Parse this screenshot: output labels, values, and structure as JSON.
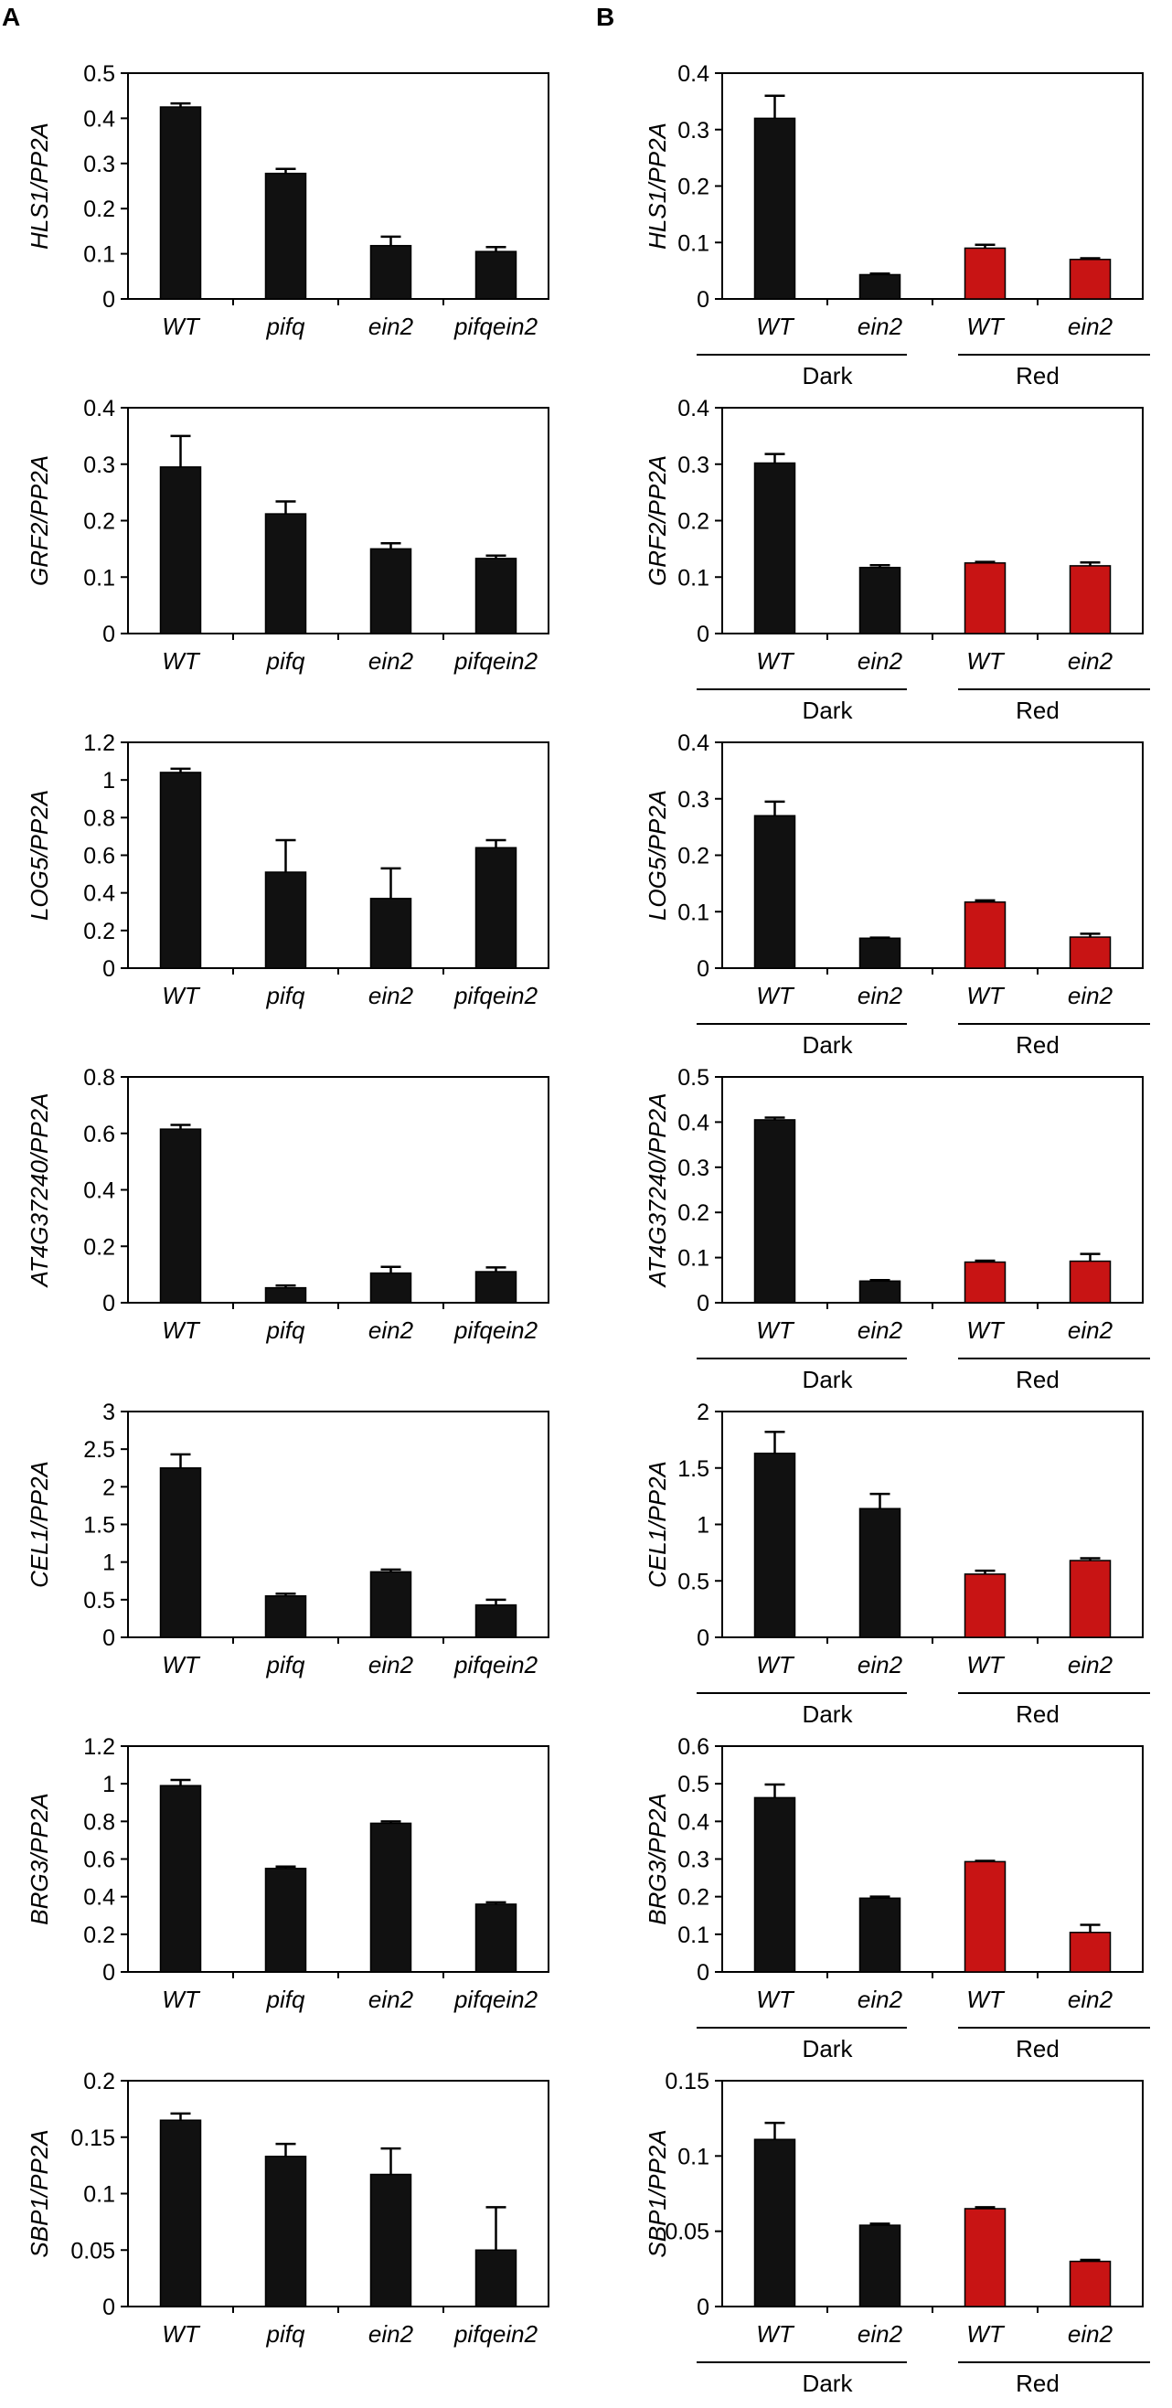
{
  "panel_labels": {
    "A": "A",
    "B": "B"
  },
  "colors": {
    "dark_bar": "#111111",
    "red_bar": "#c81414",
    "axis": "#000000"
  },
  "group_labels": {
    "dark": "Dark",
    "red": "Red"
  },
  "chart_data": [
    {
      "id": "a1",
      "type": "bar",
      "panel": "A",
      "ylabel": "HLS1/PP2A",
      "categories": [
        "WT",
        "pifq",
        "ein2",
        "pifqein2"
      ],
      "values": [
        0.425,
        0.278,
        0.118,
        0.105
      ],
      "errors": [
        0.008,
        0.01,
        0.02,
        0.01
      ],
      "ylim": [
        0,
        0.5
      ],
      "yticks": [
        "0",
        "0.1",
        "0.2",
        "0.3",
        "0.4",
        "0.5"
      ],
      "colors": [
        "dark",
        "dark",
        "dark",
        "dark"
      ]
    },
    {
      "id": "b1",
      "type": "bar",
      "panel": "B",
      "ylabel": "HLS1/PP2A",
      "categories": [
        "WT",
        "ein2",
        "WT",
        "ein2"
      ],
      "values": [
        0.32,
        0.043,
        0.09,
        0.07
      ],
      "errors": [
        0.04,
        0.002,
        0.006,
        0.002
      ],
      "ylim": [
        0,
        0.4
      ],
      "yticks": [
        "0",
        "0.1",
        "0.2",
        "0.3",
        "0.4"
      ],
      "colors": [
        "dark",
        "dark",
        "red",
        "red"
      ]
    },
    {
      "id": "a2",
      "type": "bar",
      "panel": "A",
      "ylabel": "GRF2/PP2A",
      "categories": [
        "WT",
        "pifq",
        "ein2",
        "pifqein2"
      ],
      "values": [
        0.295,
        0.212,
        0.15,
        0.133
      ],
      "errors": [
        0.055,
        0.022,
        0.01,
        0.005
      ],
      "ylim": [
        0,
        0.4
      ],
      "yticks": [
        "0",
        "0.1",
        "0.2",
        "0.3",
        "0.4"
      ],
      "colors": [
        "dark",
        "dark",
        "dark",
        "dark"
      ]
    },
    {
      "id": "b2",
      "type": "bar",
      "panel": "B",
      "ylabel": "GRF2/PP2A",
      "categories": [
        "WT",
        "ein2",
        "WT",
        "ein2"
      ],
      "values": [
        0.302,
        0.117,
        0.125,
        0.12
      ],
      "errors": [
        0.016,
        0.004,
        0.002,
        0.006
      ],
      "ylim": [
        0,
        0.4
      ],
      "yticks": [
        "0",
        "0.1",
        "0.2",
        "0.3",
        "0.4"
      ],
      "colors": [
        "dark",
        "dark",
        "red",
        "red"
      ]
    },
    {
      "id": "a3",
      "type": "bar",
      "panel": "A",
      "ylabel": "LOG5/PP2A",
      "categories": [
        "WT",
        "pifq",
        "ein2",
        "pifqein2"
      ],
      "values": [
        1.04,
        0.51,
        0.37,
        0.64
      ],
      "errors": [
        0.02,
        0.17,
        0.16,
        0.04
      ],
      "ylim": [
        0,
        1.2
      ],
      "yticks": [
        "0",
        "0.2",
        "0.4",
        "0.6",
        "0.8",
        "1",
        "1.2"
      ],
      "colors": [
        "dark",
        "dark",
        "dark",
        "dark"
      ]
    },
    {
      "id": "b3",
      "type": "bar",
      "panel": "B",
      "ylabel": "LOG5/PP2A",
      "categories": [
        "WT",
        "ein2",
        "WT",
        "ein2"
      ],
      "values": [
        0.27,
        0.053,
        0.117,
        0.055
      ],
      "errors": [
        0.025,
        0.001,
        0.003,
        0.006
      ],
      "ylim": [
        0,
        0.4
      ],
      "yticks": [
        "0",
        "0.1",
        "0.2",
        "0.3",
        "0.4"
      ],
      "colors": [
        "dark",
        "dark",
        "red",
        "red"
      ]
    },
    {
      "id": "a4",
      "type": "bar",
      "panel": "A",
      "ylabel": "AT4G37240/PP2A",
      "categories": [
        "WT",
        "pifq",
        "ein2",
        "pifqein2"
      ],
      "values": [
        0.615,
        0.053,
        0.105,
        0.11
      ],
      "errors": [
        0.015,
        0.008,
        0.022,
        0.015
      ],
      "ylim": [
        0,
        0.8
      ],
      "yticks": [
        "0",
        "0.2",
        "0.4",
        "0.6",
        "0.8"
      ],
      "colors": [
        "dark",
        "dark",
        "dark",
        "dark"
      ]
    },
    {
      "id": "b4",
      "type": "bar",
      "panel": "B",
      "ylabel": "AT4G37240/PP2A",
      "categories": [
        "WT",
        "ein2",
        "WT",
        "ein2"
      ],
      "values": [
        0.405,
        0.048,
        0.09,
        0.092
      ],
      "errors": [
        0.005,
        0.002,
        0.003,
        0.016
      ],
      "ylim": [
        0,
        0.5
      ],
      "yticks": [
        "0",
        "0.1",
        "0.2",
        "0.3",
        "0.4",
        "0.5"
      ],
      "colors": [
        "dark",
        "dark",
        "red",
        "red"
      ]
    },
    {
      "id": "a5",
      "type": "bar",
      "panel": "A",
      "ylabel": "CEL1/PP2A",
      "categories": [
        "WT",
        "pifq",
        "ein2",
        "pifqein2"
      ],
      "values": [
        2.25,
        0.55,
        0.87,
        0.43
      ],
      "errors": [
        0.18,
        0.03,
        0.03,
        0.07
      ],
      "ylim": [
        0,
        3
      ],
      "yticks": [
        "0",
        "0.5",
        "1",
        "1.5",
        "2",
        "2.5",
        "3"
      ],
      "colors": [
        "dark",
        "dark",
        "dark",
        "dark"
      ]
    },
    {
      "id": "b5",
      "type": "bar",
      "panel": "B",
      "ylabel": "CEL1/PP2A",
      "categories": [
        "WT",
        "ein2",
        "WT",
        "ein2"
      ],
      "values": [
        1.63,
        1.14,
        0.56,
        0.68
      ],
      "errors": [
        0.19,
        0.13,
        0.03,
        0.02
      ],
      "ylim": [
        0,
        2
      ],
      "yticks": [
        "0",
        "0.5",
        "1",
        "1.5",
        "2"
      ],
      "colors": [
        "dark",
        "dark",
        "red",
        "red"
      ]
    },
    {
      "id": "a6",
      "type": "bar",
      "panel": "A",
      "ylabel": "BRG3/PP2A",
      "categories": [
        "WT",
        "pifq",
        "ein2",
        "pifqein2"
      ],
      "values": [
        0.99,
        0.55,
        0.79,
        0.36
      ],
      "errors": [
        0.03,
        0.01,
        0.01,
        0.01
      ],
      "ylim": [
        0,
        1.2
      ],
      "yticks": [
        "0",
        "0.2",
        "0.4",
        "0.6",
        "0.8",
        "1",
        "1.2"
      ],
      "colors": [
        "dark",
        "dark",
        "dark",
        "dark"
      ]
    },
    {
      "id": "b6",
      "type": "bar",
      "panel": "B",
      "ylabel": "BRG3/PP2A",
      "categories": [
        "WT",
        "ein2",
        "WT",
        "ein2"
      ],
      "values": [
        0.463,
        0.196,
        0.293,
        0.105
      ],
      "errors": [
        0.035,
        0.004,
        0.002,
        0.02
      ],
      "ylim": [
        0,
        0.6
      ],
      "yticks": [
        "0",
        "0.1",
        "0.2",
        "0.3",
        "0.4",
        "0.5",
        "0.6"
      ],
      "colors": [
        "dark",
        "dark",
        "red",
        "red"
      ]
    },
    {
      "id": "a7",
      "type": "bar",
      "panel": "A",
      "ylabel": "SBP1/PP2A",
      "categories": [
        "WT",
        "pifq",
        "ein2",
        "pifqein2"
      ],
      "values": [
        0.165,
        0.133,
        0.117,
        0.05
      ],
      "errors": [
        0.006,
        0.011,
        0.023,
        0.038
      ],
      "ylim": [
        0,
        0.2
      ],
      "yticks": [
        "0",
        "0.05",
        "0.1",
        "0.15",
        "0.2"
      ],
      "colors": [
        "dark",
        "dark",
        "dark",
        "dark"
      ]
    },
    {
      "id": "b7",
      "type": "bar",
      "panel": "B",
      "ylabel": "SBP1/PP2A",
      "categories": [
        "WT",
        "ein2",
        "WT",
        "ein2"
      ],
      "values": [
        0.111,
        0.054,
        0.065,
        0.03
      ],
      "errors": [
        0.011,
        0.001,
        0.001,
        0.001
      ],
      "ylim": [
        0,
        0.15
      ],
      "yticks": [
        "0",
        "0.05",
        "0.1",
        "0.15"
      ],
      "colors": [
        "dark",
        "dark",
        "red",
        "red"
      ]
    }
  ]
}
